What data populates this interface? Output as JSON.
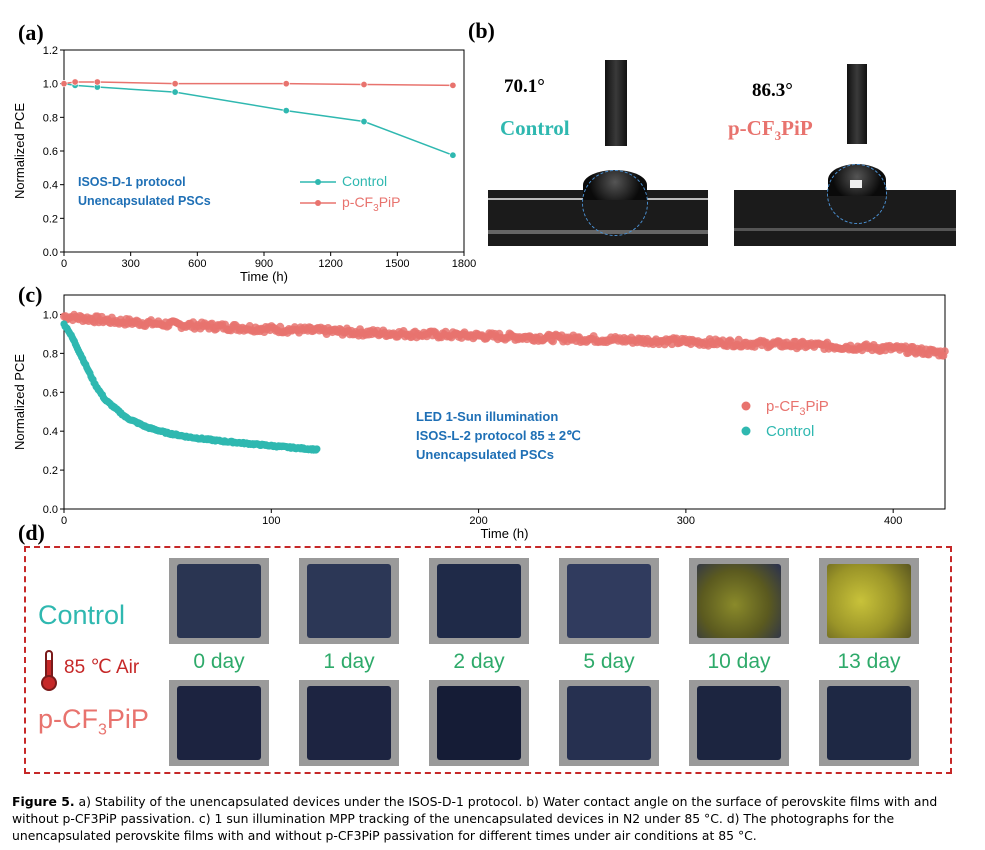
{
  "labels": {
    "a": "(a)",
    "b": "(b)",
    "c": "(c)",
    "d": "(d)"
  },
  "colors": {
    "control": "#2fb8b0",
    "pcf3pip": "#e8736e",
    "annot": "#1e6fb5",
    "panel_d_border": "#c62828",
    "days": "#2eaa6a"
  },
  "chart_data": [
    {
      "type": "line",
      "xlabel": "Time (h)",
      "ylabel": "Normalized PCE",
      "xlim": [
        0,
        1800
      ],
      "ylim": [
        0,
        1.2
      ],
      "xticks": [
        "0",
        "300",
        "600",
        "900",
        "1200",
        "1500",
        "1800"
      ],
      "yticks": [
        "0.0",
        "0.2",
        "0.4",
        "0.6",
        "0.8",
        "1.0",
        "1.2"
      ],
      "annotation": [
        "ISOS-D-1 protocol",
        "Unencapsulated PSCs"
      ],
      "legend_position": "center-right",
      "series": [
        {
          "name": "Control",
          "color": "#2fb8b0",
          "x": [
            0,
            50,
            150,
            500,
            1000,
            1350,
            1750
          ],
          "y": [
            1.0,
            0.99,
            0.98,
            0.95,
            0.84,
            0.775,
            0.575
          ]
        },
        {
          "name": "p-CF3PiP",
          "color": "#e8736e",
          "x": [
            0,
            50,
            150,
            500,
            1000,
            1350,
            1750
          ],
          "y": [
            1.0,
            1.01,
            1.01,
            1.0,
            1.0,
            0.995,
            0.99
          ]
        }
      ]
    },
    {
      "type": "scatter",
      "xlabel": "Time (h)",
      "ylabel": "Normalized PCE",
      "xlim": [
        0,
        425
      ],
      "ylim": [
        0,
        1.1
      ],
      "xticks": [
        "0",
        "100",
        "200",
        "300",
        "400"
      ],
      "yticks": [
        "0.0",
        "0.2",
        "0.4",
        "0.6",
        "0.8",
        "1.0"
      ],
      "annotation": [
        "LED 1-Sun illumination",
        "ISOS-L-2 protocol  85 ± 2℃",
        "Unencapsulated PSCs"
      ],
      "legend_position": "center-right",
      "series": [
        {
          "name": "p-CF3PiP",
          "color": "#e8736e",
          "x": [
            0,
            25,
            50,
            100,
            150,
            200,
            250,
            300,
            350,
            400,
            425
          ],
          "y": [
            0.99,
            0.965,
            0.95,
            0.925,
            0.905,
            0.89,
            0.875,
            0.86,
            0.845,
            0.825,
            0.8
          ]
        },
        {
          "name": "Control",
          "color": "#2fb8b0",
          "x": [
            0,
            2,
            5,
            10,
            15,
            20,
            30,
            40,
            50,
            60,
            75,
            90,
            105,
            122
          ],
          "y": [
            0.95,
            0.92,
            0.86,
            0.75,
            0.64,
            0.56,
            0.47,
            0.42,
            0.39,
            0.37,
            0.35,
            0.335,
            0.32,
            0.305
          ]
        }
      ]
    }
  ],
  "panel_b": {
    "control": {
      "angle": "70.1°",
      "name": "Control"
    },
    "pcf3pip": {
      "angle": "86.3°",
      "name": "p-CF3PiP"
    }
  },
  "panel_d": {
    "row_control": "Control",
    "condition": "85 ℃ Air",
    "row_pcf3pip": "p-CF3PiP",
    "days": [
      "0 day",
      "1 day",
      "2 day",
      "5 day",
      "10 day",
      "13 day"
    ],
    "control_films": [
      "#2a3552",
      "#2c3756",
      "#1f2a48",
      "#303b5e",
      "degraded-yellow",
      "degraded-yellow-strong"
    ],
    "pcf3pip_films": [
      "#1c2340",
      "#1d2441",
      "#151c36",
      "#263050",
      "#1c2540",
      "#1e2844"
    ]
  },
  "caption": {
    "fig": "Figure 5.",
    "text": " a) Stability of the unencapsulated devices under the ISOS-D-1 protocol. b) Water contact angle on the surface of perovskite films with and without p-CF3PiP passivation. c) 1 sun illumination MPP tracking of the unencapsulated devices in N2 under 85 °C. d) The photographs for the unencapsulated perovskite films with and without p-CF3PiP passivation for different times under air conditions at 85 °C."
  }
}
